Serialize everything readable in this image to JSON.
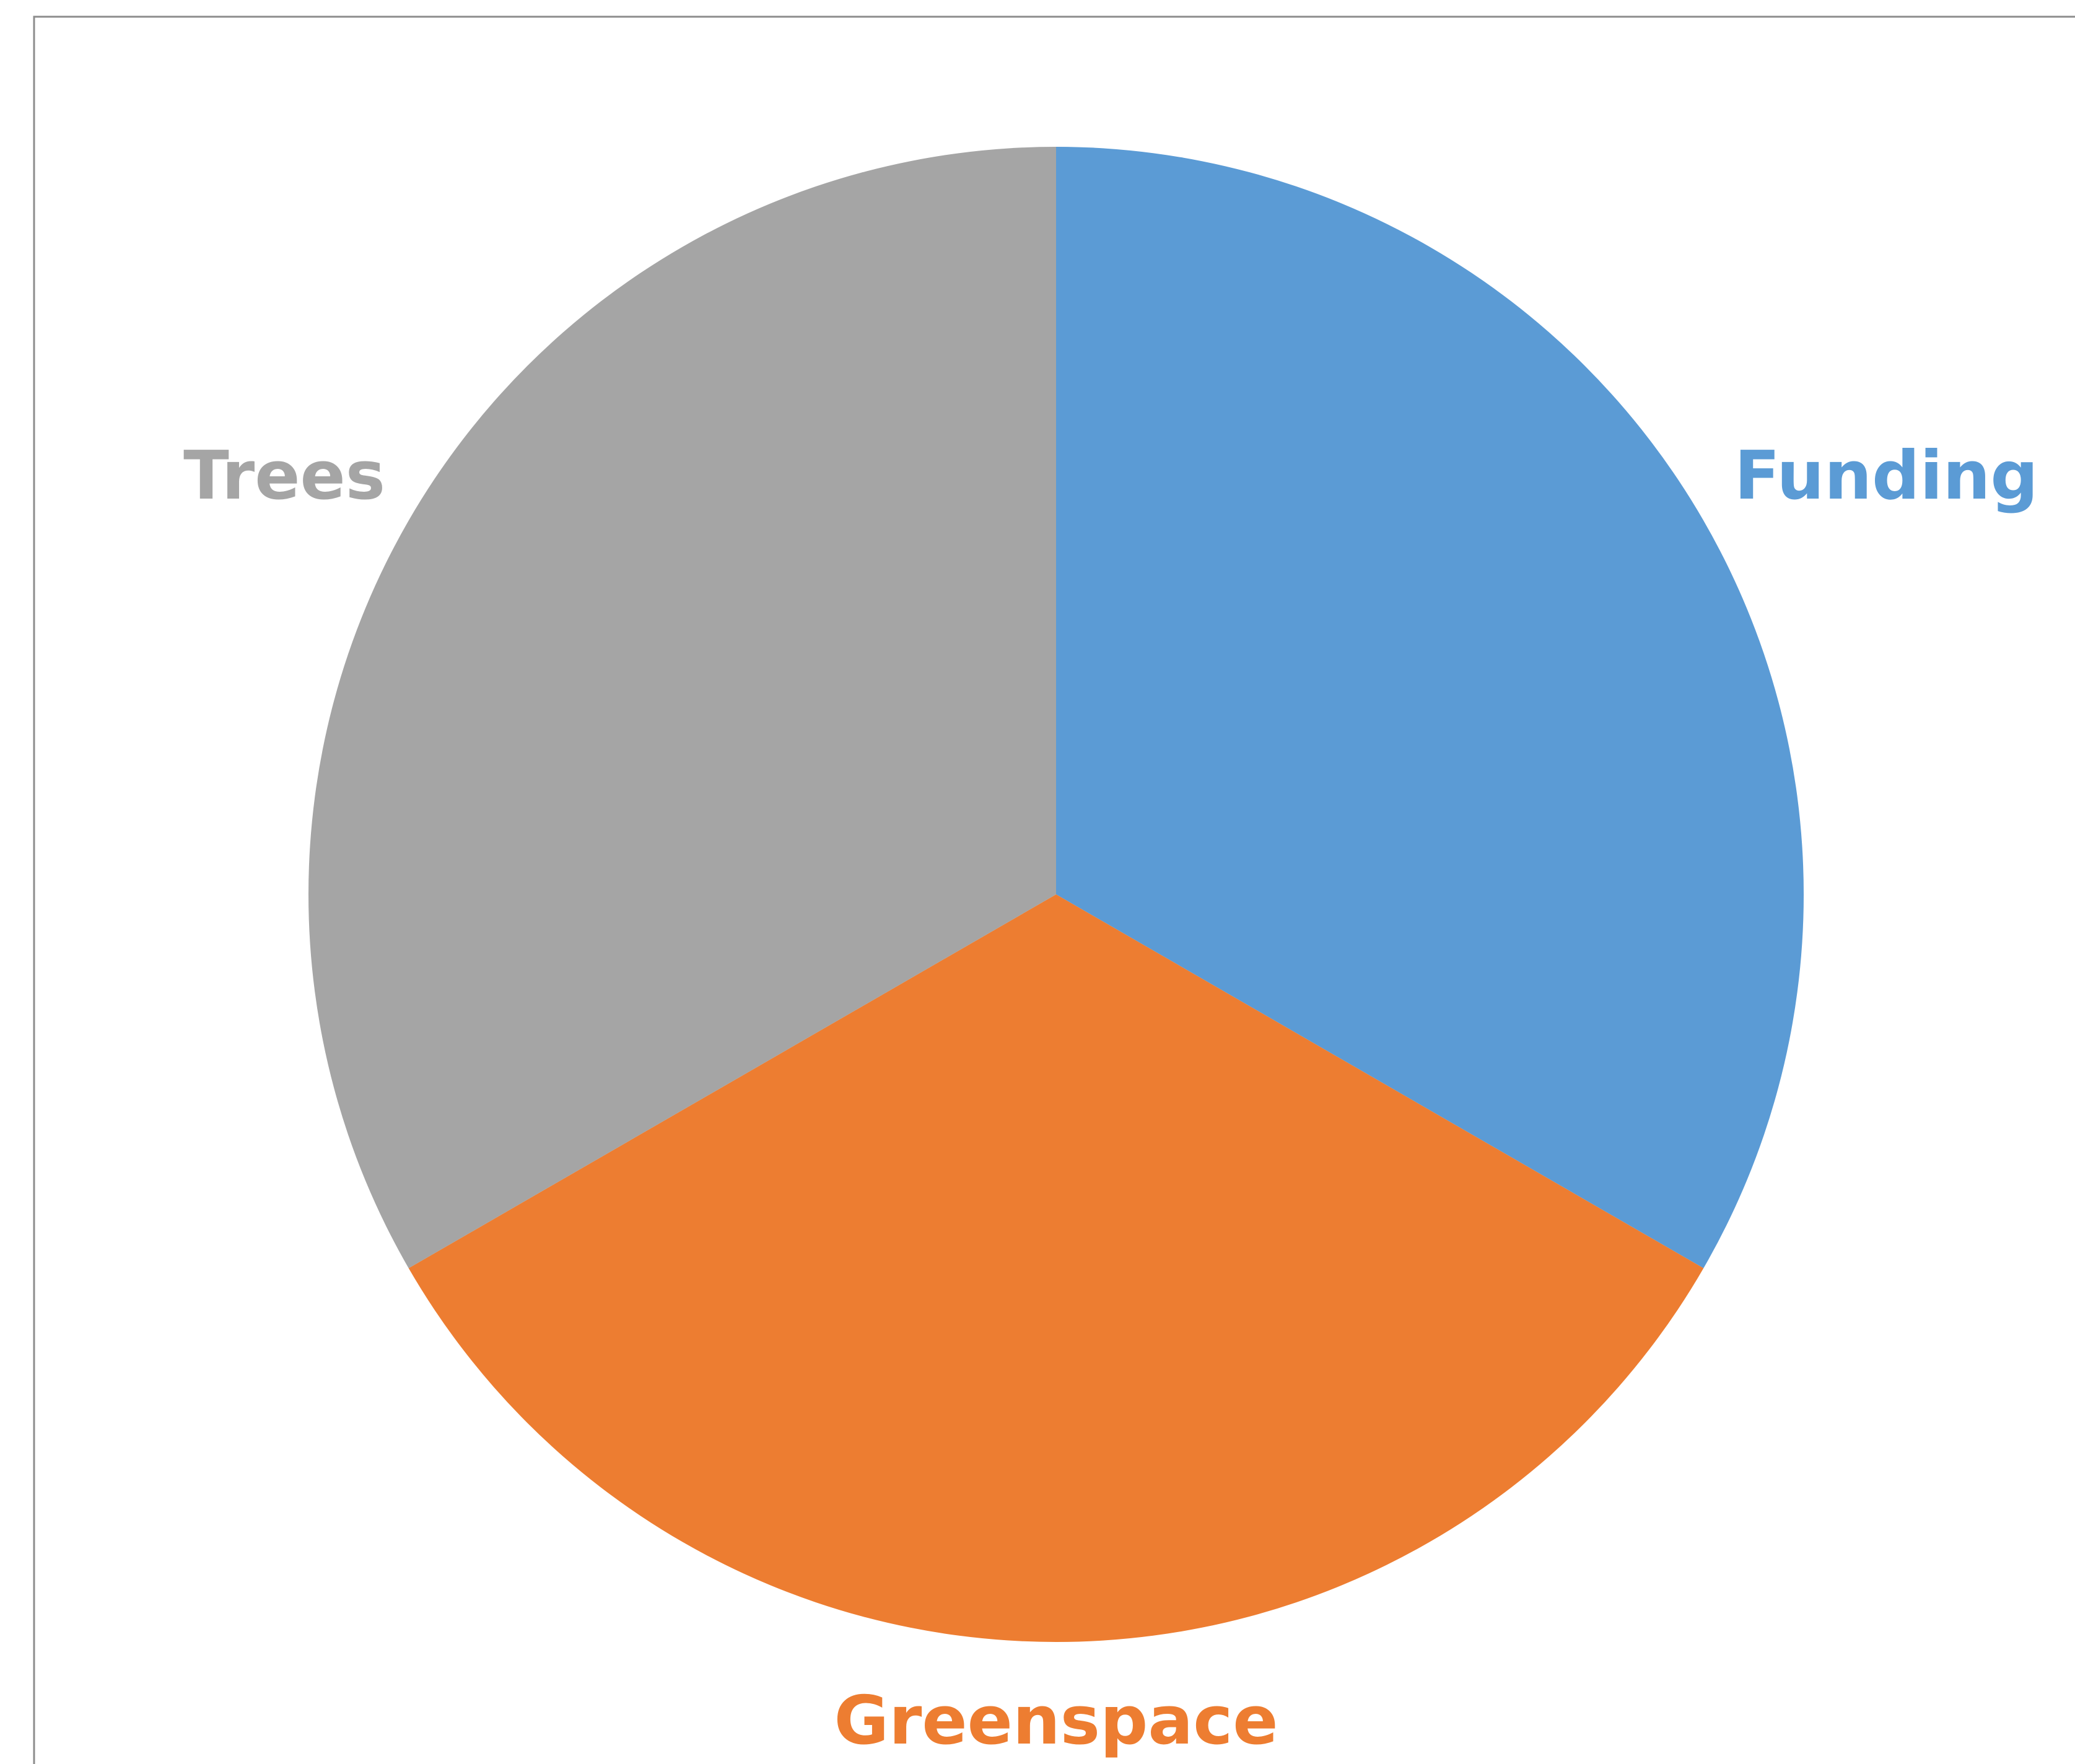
{
  "chart_data": {
    "type": "pie",
    "title": "",
    "start_angle_deg": 0,
    "direction": "clockwise",
    "slices": [
      {
        "label": "Funding",
        "value": 1,
        "color": "#5B9BD5"
      },
      {
        "label": "Greenspace",
        "value": 1,
        "color": "#ED7D31"
      },
      {
        "label": "Trees",
        "value": 1,
        "color": "#A5A5A5"
      }
    ],
    "legend": "none",
    "data_labels": "category-name-outside"
  }
}
